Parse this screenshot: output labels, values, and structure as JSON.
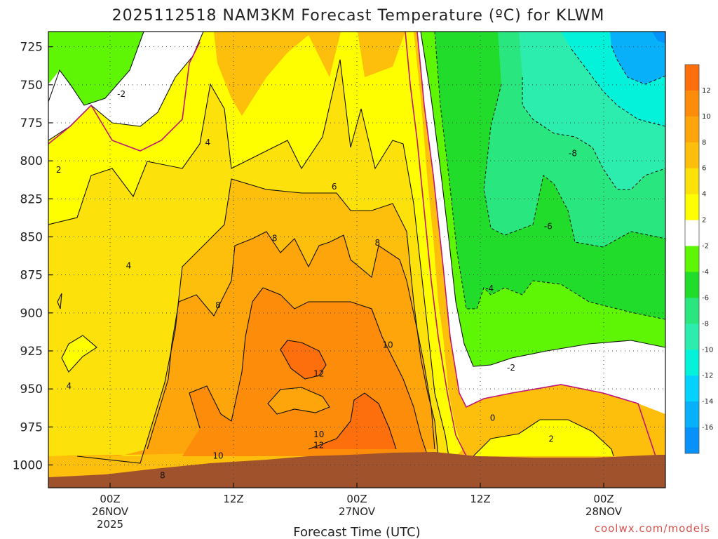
{
  "chart_data": {
    "type": "heatmap",
    "title": "2025112518 NAM3KM Forecast Temperature (ºC) for KLWM",
    "xlabel": "Forecast Time (UTC)",
    "ylabel": "",
    "watermark": "coolwx.com/models",
    "y_axis": {
      "unit": "hPa",
      "range": [
        1015,
        715
      ],
      "ticks": [
        725,
        750,
        775,
        800,
        825,
        850,
        875,
        900,
        925,
        950,
        975,
        1000
      ]
    },
    "x_axis": {
      "unit": "forecast hour",
      "range": [
        0,
        60
      ],
      "ticks": [
        {
          "hour": 6,
          "lines": [
            "00Z",
            "26NOV",
            "2025"
          ]
        },
        {
          "hour": 18,
          "lines": [
            "12Z"
          ]
        },
        {
          "hour": 30,
          "lines": [
            "00Z",
            "27NOV"
          ]
        },
        {
          "hour": 42,
          "lines": [
            "12Z"
          ]
        },
        {
          "hour": 54,
          "lines": [
            "00Z",
            "28NOV"
          ]
        }
      ]
    },
    "colorbar": {
      "labels": [
        "12",
        "10",
        "8",
        "6",
        "4",
        "2",
        "-2",
        "-4",
        "-6",
        "-8",
        "-10",
        "-12",
        "-14",
        "-16"
      ],
      "bands": [
        {
          "low": 12,
          "high": 14,
          "color": "#fd6e0c"
        },
        {
          "low": 10,
          "high": 12,
          "color": "#fd8c0a"
        },
        {
          "low": 8,
          "high": 10,
          "color": "#fda50a"
        },
        {
          "low": 6,
          "high": 8,
          "color": "#fdbf0c"
        },
        {
          "low": 4,
          "high": 6,
          "color": "#fde10a"
        },
        {
          "low": 2,
          "high": 4,
          "color": "#fefe00"
        },
        {
          "low": -2,
          "high": 2,
          "color": "#ffffff"
        },
        {
          "low": -4,
          "high": -2,
          "color": "#5ef604"
        },
        {
          "low": -6,
          "high": -4,
          "color": "#21dc2a"
        },
        {
          "low": -8,
          "high": -6,
          "color": "#2ae67e"
        },
        {
          "low": -10,
          "high": -8,
          "color": "#2cecae"
        },
        {
          "low": -12,
          "high": -10,
          "color": "#04f2da"
        },
        {
          "low": -14,
          "high": -12,
          "color": "#06d2ff"
        },
        {
          "low": -16,
          "high": -14,
          "color": "#08b0fa"
        },
        {
          "low": -18,
          "high": -16,
          "color": "#0792fa"
        }
      ]
    },
    "contour_labels": [
      {
        "text": "-2",
        "hour": 7.1,
        "p": 756
      },
      {
        "text": "2",
        "hour": 1.0,
        "p": 806
      },
      {
        "text": "4",
        "hour": 15.5,
        "p": 788
      },
      {
        "text": "4",
        "hour": 7.8,
        "p": 869
      },
      {
        "text": "4",
        "hour": 2.0,
        "p": 948
      },
      {
        "text": "6",
        "hour": 27.8,
        "p": 817
      },
      {
        "text": "8",
        "hour": 22.0,
        "p": 851
      },
      {
        "text": "8",
        "hour": 16.5,
        "p": 895
      },
      {
        "text": "8",
        "hour": 32.0,
        "p": 854
      },
      {
        "text": "8",
        "hour": 11.1,
        "p": 1007
      },
      {
        "text": "10",
        "hour": 33.0,
        "p": 921
      },
      {
        "text": "10",
        "hour": 26.3,
        "p": 980
      },
      {
        "text": "10",
        "hour": 16.5,
        "p": 994
      },
      {
        "text": "12",
        "hour": 26.3,
        "p": 940
      },
      {
        "text": "12",
        "hour": 26.3,
        "p": 987
      },
      {
        "text": "-8",
        "hour": 51.0,
        "p": 795
      },
      {
        "text": "-6",
        "hour": 48.6,
        "p": 843
      },
      {
        "text": "-4",
        "hour": 42.9,
        "p": 884
      },
      {
        "text": "-2",
        "hour": 45.0,
        "p": 936
      },
      {
        "text": "0",
        "hour": 43.2,
        "p": 969
      },
      {
        "text": "2",
        "hour": 48.9,
        "p": 983
      }
    ],
    "bands_note": "Temperature vs pressure/time cross-section; warm core 10-12C near 27NOV 00Z at 925-975 hPa; cold air below -10C aloft after 28NOV."
  }
}
